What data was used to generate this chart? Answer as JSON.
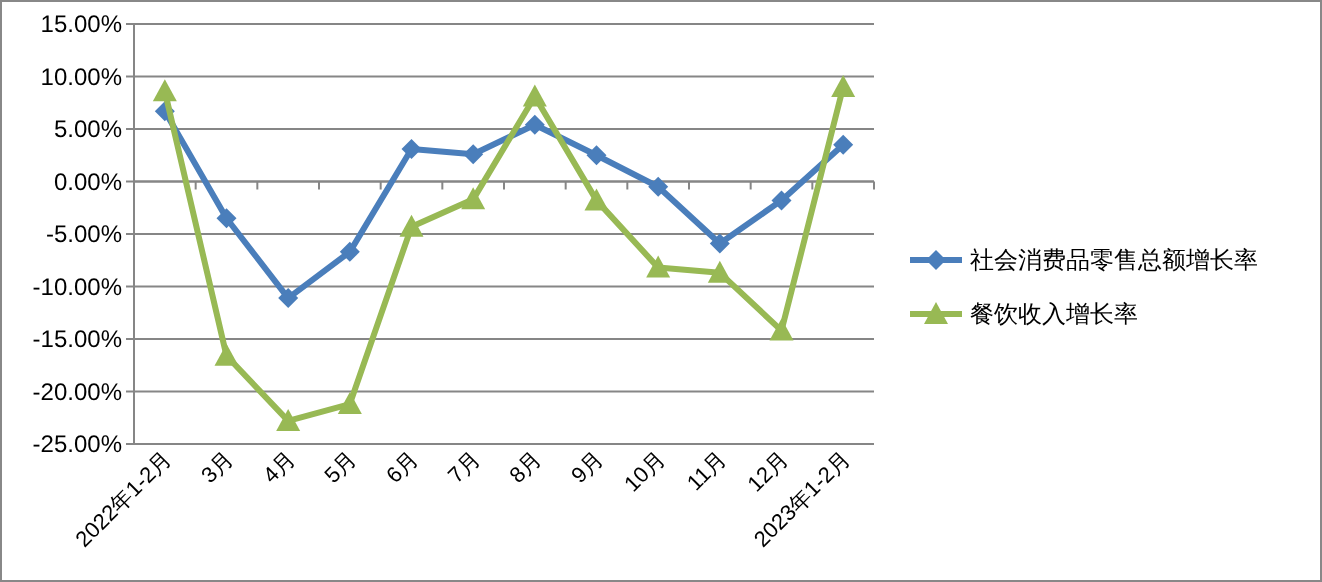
{
  "chart_data": {
    "type": "line",
    "categories": [
      "2022年1-2月",
      "3月",
      "4月",
      "5月",
      "6月",
      "7月",
      "8月",
      "9月",
      "10月",
      "11月",
      "12月",
      "2023年1-2月"
    ],
    "series": [
      {
        "name": "社会消费品零售总额增长率",
        "color": "#4a7ebb",
        "marker": "diamond",
        "values": [
          6.7,
          -3.5,
          -11.1,
          -6.7,
          3.1,
          2.6,
          5.4,
          2.5,
          -0.5,
          -5.9,
          -1.8,
          3.5
        ]
      },
      {
        "name": "餐饮收入增长率",
        "color": "#98b954",
        "marker": "triangle",
        "values": [
          8.6,
          -16.6,
          -22.8,
          -21.2,
          -4.3,
          -1.7,
          8.1,
          -1.8,
          -8.2,
          -8.7,
          -14.2,
          9.0
        ]
      }
    ],
    "ylim": [
      -25,
      15
    ],
    "yticks": [
      {
        "value": 15,
        "label": "15.00%"
      },
      {
        "value": 10,
        "label": "10.00%"
      },
      {
        "value": 5,
        "label": "5.00%"
      },
      {
        "value": 0,
        "label": "0.00%"
      },
      {
        "value": -5,
        "label": "-5.00%"
      },
      {
        "value": -10,
        "label": "-10.00%"
      },
      {
        "value": -15,
        "label": "-15.00%"
      },
      {
        "value": -20,
        "label": "-20.00%"
      },
      {
        "value": -25,
        "label": "-25.00%"
      }
    ],
    "grid": "y",
    "legend": "right",
    "line_style": "solid"
  }
}
